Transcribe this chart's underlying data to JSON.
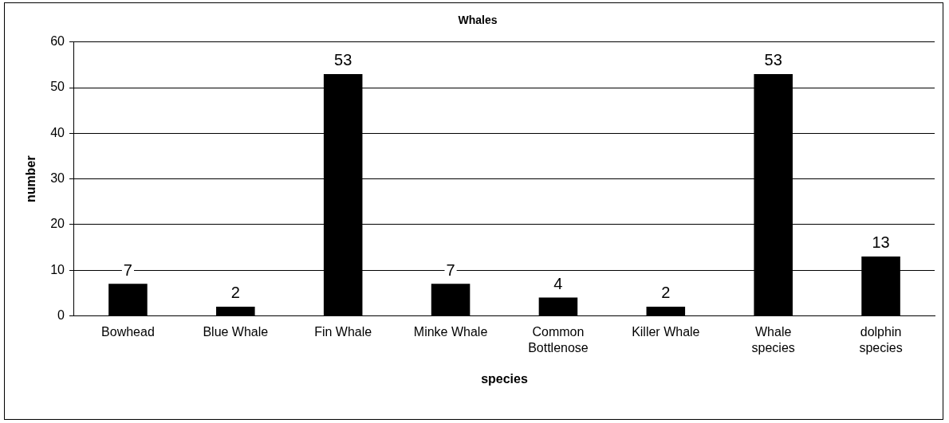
{
  "chart_data": {
    "type": "bar",
    "title": "Whales",
    "xlabel": "species",
    "ylabel": "number",
    "categories": [
      "Bowhead",
      "Blue Whale",
      "Fin Whale",
      "Minke Whale",
      "Common Bottlenose",
      "Killer Whale",
      "Whale species",
      "dolphin species"
    ],
    "values": [
      7,
      2,
      53,
      7,
      4,
      2,
      53,
      13
    ],
    "color": "#000000",
    "ylim": [
      0,
      60
    ],
    "yticks": [
      0,
      10,
      20,
      30,
      40,
      50,
      60
    ],
    "grid": "y",
    "data_labels": true,
    "legend": false
  }
}
